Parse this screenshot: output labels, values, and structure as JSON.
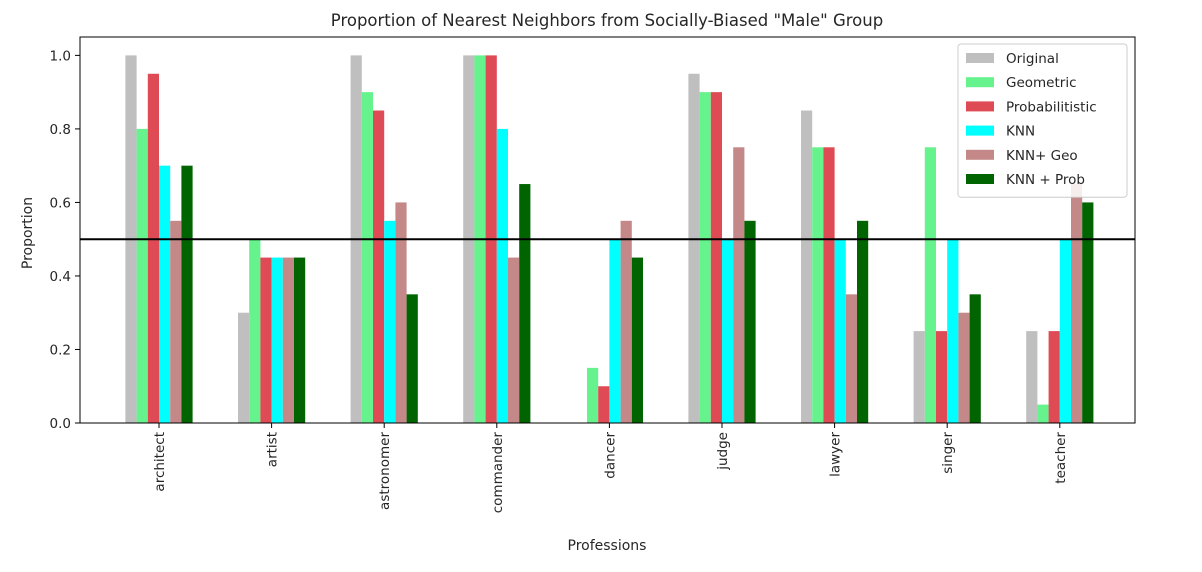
{
  "chart_data": {
    "type": "bar",
    "title": "Proportion of Nearest Neighbors from Socially-Biased \"Male\" Group",
    "xlabel": "Professions",
    "ylabel": "Proportion",
    "ylim": [
      0,
      1.05
    ],
    "yticks": [
      "0.0",
      "0.2",
      "0.4",
      "0.6",
      "0.8",
      "1.0"
    ],
    "reference_line": 0.5,
    "legend_position": "top-right",
    "categories": [
      "architect",
      "artist",
      "astronomer",
      "commander",
      "dancer",
      "judge",
      "lawyer",
      "singer",
      "teacher"
    ],
    "series": [
      {
        "name": "Original",
        "color": "#bfbfbf",
        "values": [
          1.0,
          0.3,
          1.0,
          1.0,
          0.0,
          0.95,
          0.85,
          0.25,
          0.25
        ]
      },
      {
        "name": "Geometric",
        "color": "#66f28c",
        "values": [
          0.8,
          0.5,
          0.9,
          1.0,
          0.15,
          0.9,
          0.75,
          0.75,
          0.05
        ]
      },
      {
        "name": "Probabilitistic",
        "color": "#de4b55",
        "values": [
          0.95,
          0.45,
          0.85,
          1.0,
          0.1,
          0.9,
          0.75,
          0.25,
          0.25
        ]
      },
      {
        "name": "KNN",
        "color": "#00ffff",
        "values": [
          0.7,
          0.45,
          0.55,
          0.8,
          0.5,
          0.5,
          0.5,
          0.5,
          0.5
        ]
      },
      {
        "name": "KNN+ Geo",
        "color": "#c48888",
        "values": [
          0.55,
          0.45,
          0.6,
          0.45,
          0.55,
          0.75,
          0.35,
          0.3,
          0.65
        ]
      },
      {
        "name": "KNN + Prob",
        "color": "#006400",
        "values": [
          0.7,
          0.45,
          0.35,
          0.65,
          0.45,
          0.55,
          0.55,
          0.35,
          0.6
        ]
      }
    ]
  }
}
